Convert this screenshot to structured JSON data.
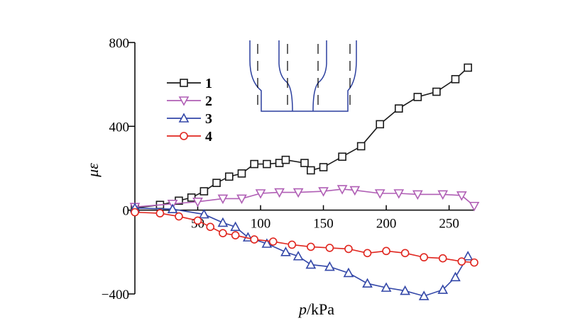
{
  "chart_data": {
    "type": "line",
    "xlabel_italic": "p",
    "xlabel_rest": "/kPa",
    "ylabel": "με",
    "xlim": [
      0,
      270
    ],
    "ylim": [
      -400,
      800
    ],
    "x_ticks": [
      50,
      100,
      150,
      200,
      250
    ],
    "y_ticks": [
      {
        "value": 800,
        "label": "800"
      },
      {
        "value": 400,
        "label": "400"
      },
      {
        "value": 0,
        "label": "0"
      },
      {
        "value": -400,
        "label": "−400"
      }
    ],
    "legend_position": "top-left",
    "series": [
      {
        "name": "1",
        "color": "#1a1a1a",
        "marker": "square",
        "points": [
          [
            0,
            10
          ],
          [
            20,
            25
          ],
          [
            35,
            45
          ],
          [
            45,
            60
          ],
          [
            55,
            90
          ],
          [
            65,
            130
          ],
          [
            75,
            160
          ],
          [
            85,
            175
          ],
          [
            95,
            220
          ],
          [
            105,
            220
          ],
          [
            115,
            225
          ],
          [
            120,
            240
          ],
          [
            135,
            225
          ],
          [
            140,
            190
          ],
          [
            150,
            205
          ],
          [
            165,
            255
          ],
          [
            180,
            305
          ],
          [
            195,
            410
          ],
          [
            210,
            485
          ],
          [
            225,
            540
          ],
          [
            240,
            565
          ],
          [
            255,
            625
          ],
          [
            265,
            680
          ]
        ]
      },
      {
        "name": "2",
        "color": "#b05fb5",
        "marker": "triangle-down",
        "points": [
          [
            0,
            15
          ],
          [
            30,
            30
          ],
          [
            50,
            40
          ],
          [
            70,
            55
          ],
          [
            85,
            55
          ],
          [
            100,
            80
          ],
          [
            115,
            85
          ],
          [
            130,
            85
          ],
          [
            150,
            90
          ],
          [
            165,
            100
          ],
          [
            175,
            95
          ],
          [
            195,
            80
          ],
          [
            210,
            80
          ],
          [
            225,
            75
          ],
          [
            245,
            75
          ],
          [
            260,
            70
          ],
          [
            270,
            20
          ]
        ]
      },
      {
        "name": "3",
        "color": "#3347a8",
        "marker": "triangle-up",
        "points": [
          [
            0,
            10
          ],
          [
            30,
            5
          ],
          [
            55,
            -20
          ],
          [
            70,
            -60
          ],
          [
            80,
            -80
          ],
          [
            90,
            -130
          ],
          [
            105,
            -160
          ],
          [
            120,
            -200
          ],
          [
            130,
            -220
          ],
          [
            140,
            -260
          ],
          [
            155,
            -270
          ],
          [
            170,
            -300
          ],
          [
            185,
            -350
          ],
          [
            200,
            -370
          ],
          [
            215,
            -385
          ],
          [
            230,
            -410
          ],
          [
            245,
            -380
          ],
          [
            255,
            -320
          ],
          [
            265,
            -220
          ]
        ]
      },
      {
        "name": "4",
        "color": "#e0261f",
        "marker": "circle",
        "points": [
          [
            0,
            -10
          ],
          [
            20,
            -15
          ],
          [
            35,
            -30
          ],
          [
            50,
            -50
          ],
          [
            60,
            -80
          ],
          [
            70,
            -110
          ],
          [
            80,
            -120
          ],
          [
            95,
            -140
          ],
          [
            110,
            -150
          ],
          [
            125,
            -165
          ],
          [
            140,
            -175
          ],
          [
            155,
            -180
          ],
          [
            170,
            -185
          ],
          [
            185,
            -205
          ],
          [
            200,
            -195
          ],
          [
            215,
            -205
          ],
          [
            230,
            -225
          ],
          [
            245,
            -230
          ],
          [
            260,
            -245
          ],
          [
            270,
            -250
          ]
        ]
      }
    ],
    "inset": {
      "color": "#2b3f9e"
    }
  }
}
